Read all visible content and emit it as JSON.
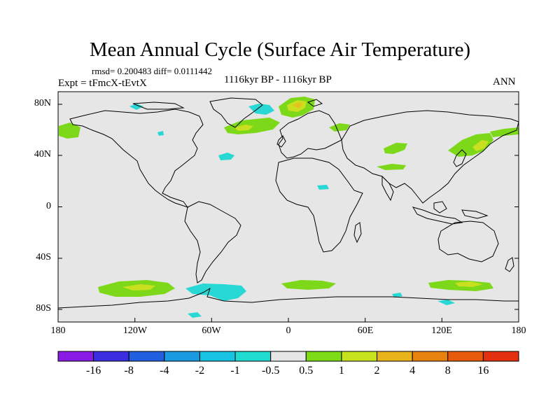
{
  "title": "Mean Annual Cycle (Surface Air Temperature)",
  "stats": "rmsd= 0.200483 diff= 0.0111442",
  "experiment": "Expt = tFmcX-tEvtX",
  "period": "1116kyr BP - 1116kyr BP",
  "season": "ANN",
  "map": {
    "lon_range": [
      -180,
      180
    ],
    "lat_range": [
      -90,
      90
    ],
    "background_color": "#e6e6e6"
  },
  "axes": {
    "x_ticks": [
      "180",
      "120W",
      "60W",
      "0",
      "60E",
      "120E",
      "180"
    ],
    "y_ticks": [
      "80N",
      "40N",
      "0",
      "40S",
      "80S"
    ]
  },
  "colorbar": {
    "colors": [
      "#8a1be6",
      "#3a2ee0",
      "#1f5fe0",
      "#1a9ae0",
      "#16c3e2",
      "#20dcd0",
      "#e6e6e6",
      "#7ddb16",
      "#c6e21e",
      "#e8b21a",
      "#e8820f",
      "#e85a0c",
      "#e3300e"
    ],
    "labels": [
      "-16",
      "-8",
      "-4",
      "-2",
      "-1",
      "-0.5",
      "0.5",
      "1",
      "2",
      "4",
      "8",
      "16"
    ]
  },
  "anomaly_legend": {
    "cyan": "#27d8d4",
    "green": "#7ed81a",
    "yellow": "#c8e020",
    "gold": "#e6c21c"
  }
}
